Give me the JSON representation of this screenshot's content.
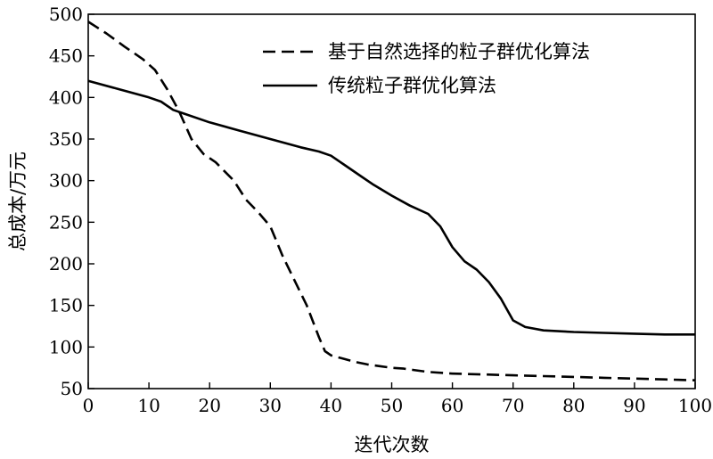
{
  "chart_data": {
    "type": "line",
    "title": "",
    "xlabel": "迭代次数",
    "ylabel": "总成本/万元",
    "xlim": [
      0,
      100
    ],
    "ylim": [
      50,
      500
    ],
    "xticks": [
      0,
      10,
      20,
      30,
      40,
      50,
      60,
      70,
      80,
      90,
      100
    ],
    "yticks": [
      50,
      100,
      150,
      200,
      250,
      300,
      350,
      400,
      450,
      500
    ],
    "grid": false,
    "legend_position": "top-right",
    "series": [
      {
        "name": "基于自然选择的粒子群优化算法",
        "style": "dashed",
        "color": "#000000",
        "x": [
          0,
          3,
          6,
          9,
          11,
          13,
          15,
          17,
          19,
          21,
          24,
          26,
          28,
          30,
          32,
          34,
          36,
          38,
          39,
          40,
          42,
          44,
          46,
          48,
          50,
          52,
          54,
          56,
          60,
          65,
          70,
          75,
          80,
          85,
          90,
          95,
          100
        ],
        "values": [
          491,
          477,
          461,
          446,
          433,
          410,
          383,
          350,
          332,
          322,
          300,
          277,
          262,
          245,
          210,
          180,
          150,
          112,
          95,
          90,
          86,
          82,
          79,
          77,
          75,
          74,
          72,
          70,
          68,
          67,
          66,
          65,
          64,
          63,
          62,
          61,
          60
        ]
      },
      {
        "name": "传统粒子群优化算法",
        "style": "solid",
        "color": "#000000",
        "x": [
          0,
          5,
          10,
          12,
          14,
          16,
          20,
          25,
          30,
          35,
          38,
          40,
          42,
          45,
          47,
          50,
          53,
          56,
          58,
          60,
          62,
          64,
          66,
          68,
          70,
          72,
          75,
          80,
          85,
          90,
          95,
          100
        ],
        "values": [
          420,
          410,
          400,
          395,
          385,
          380,
          370,
          360,
          350,
          340,
          335,
          330,
          320,
          305,
          295,
          282,
          270,
          260,
          245,
          220,
          203,
          193,
          178,
          158,
          132,
          124,
          120,
          118,
          117,
          116,
          115,
          115
        ]
      }
    ]
  }
}
